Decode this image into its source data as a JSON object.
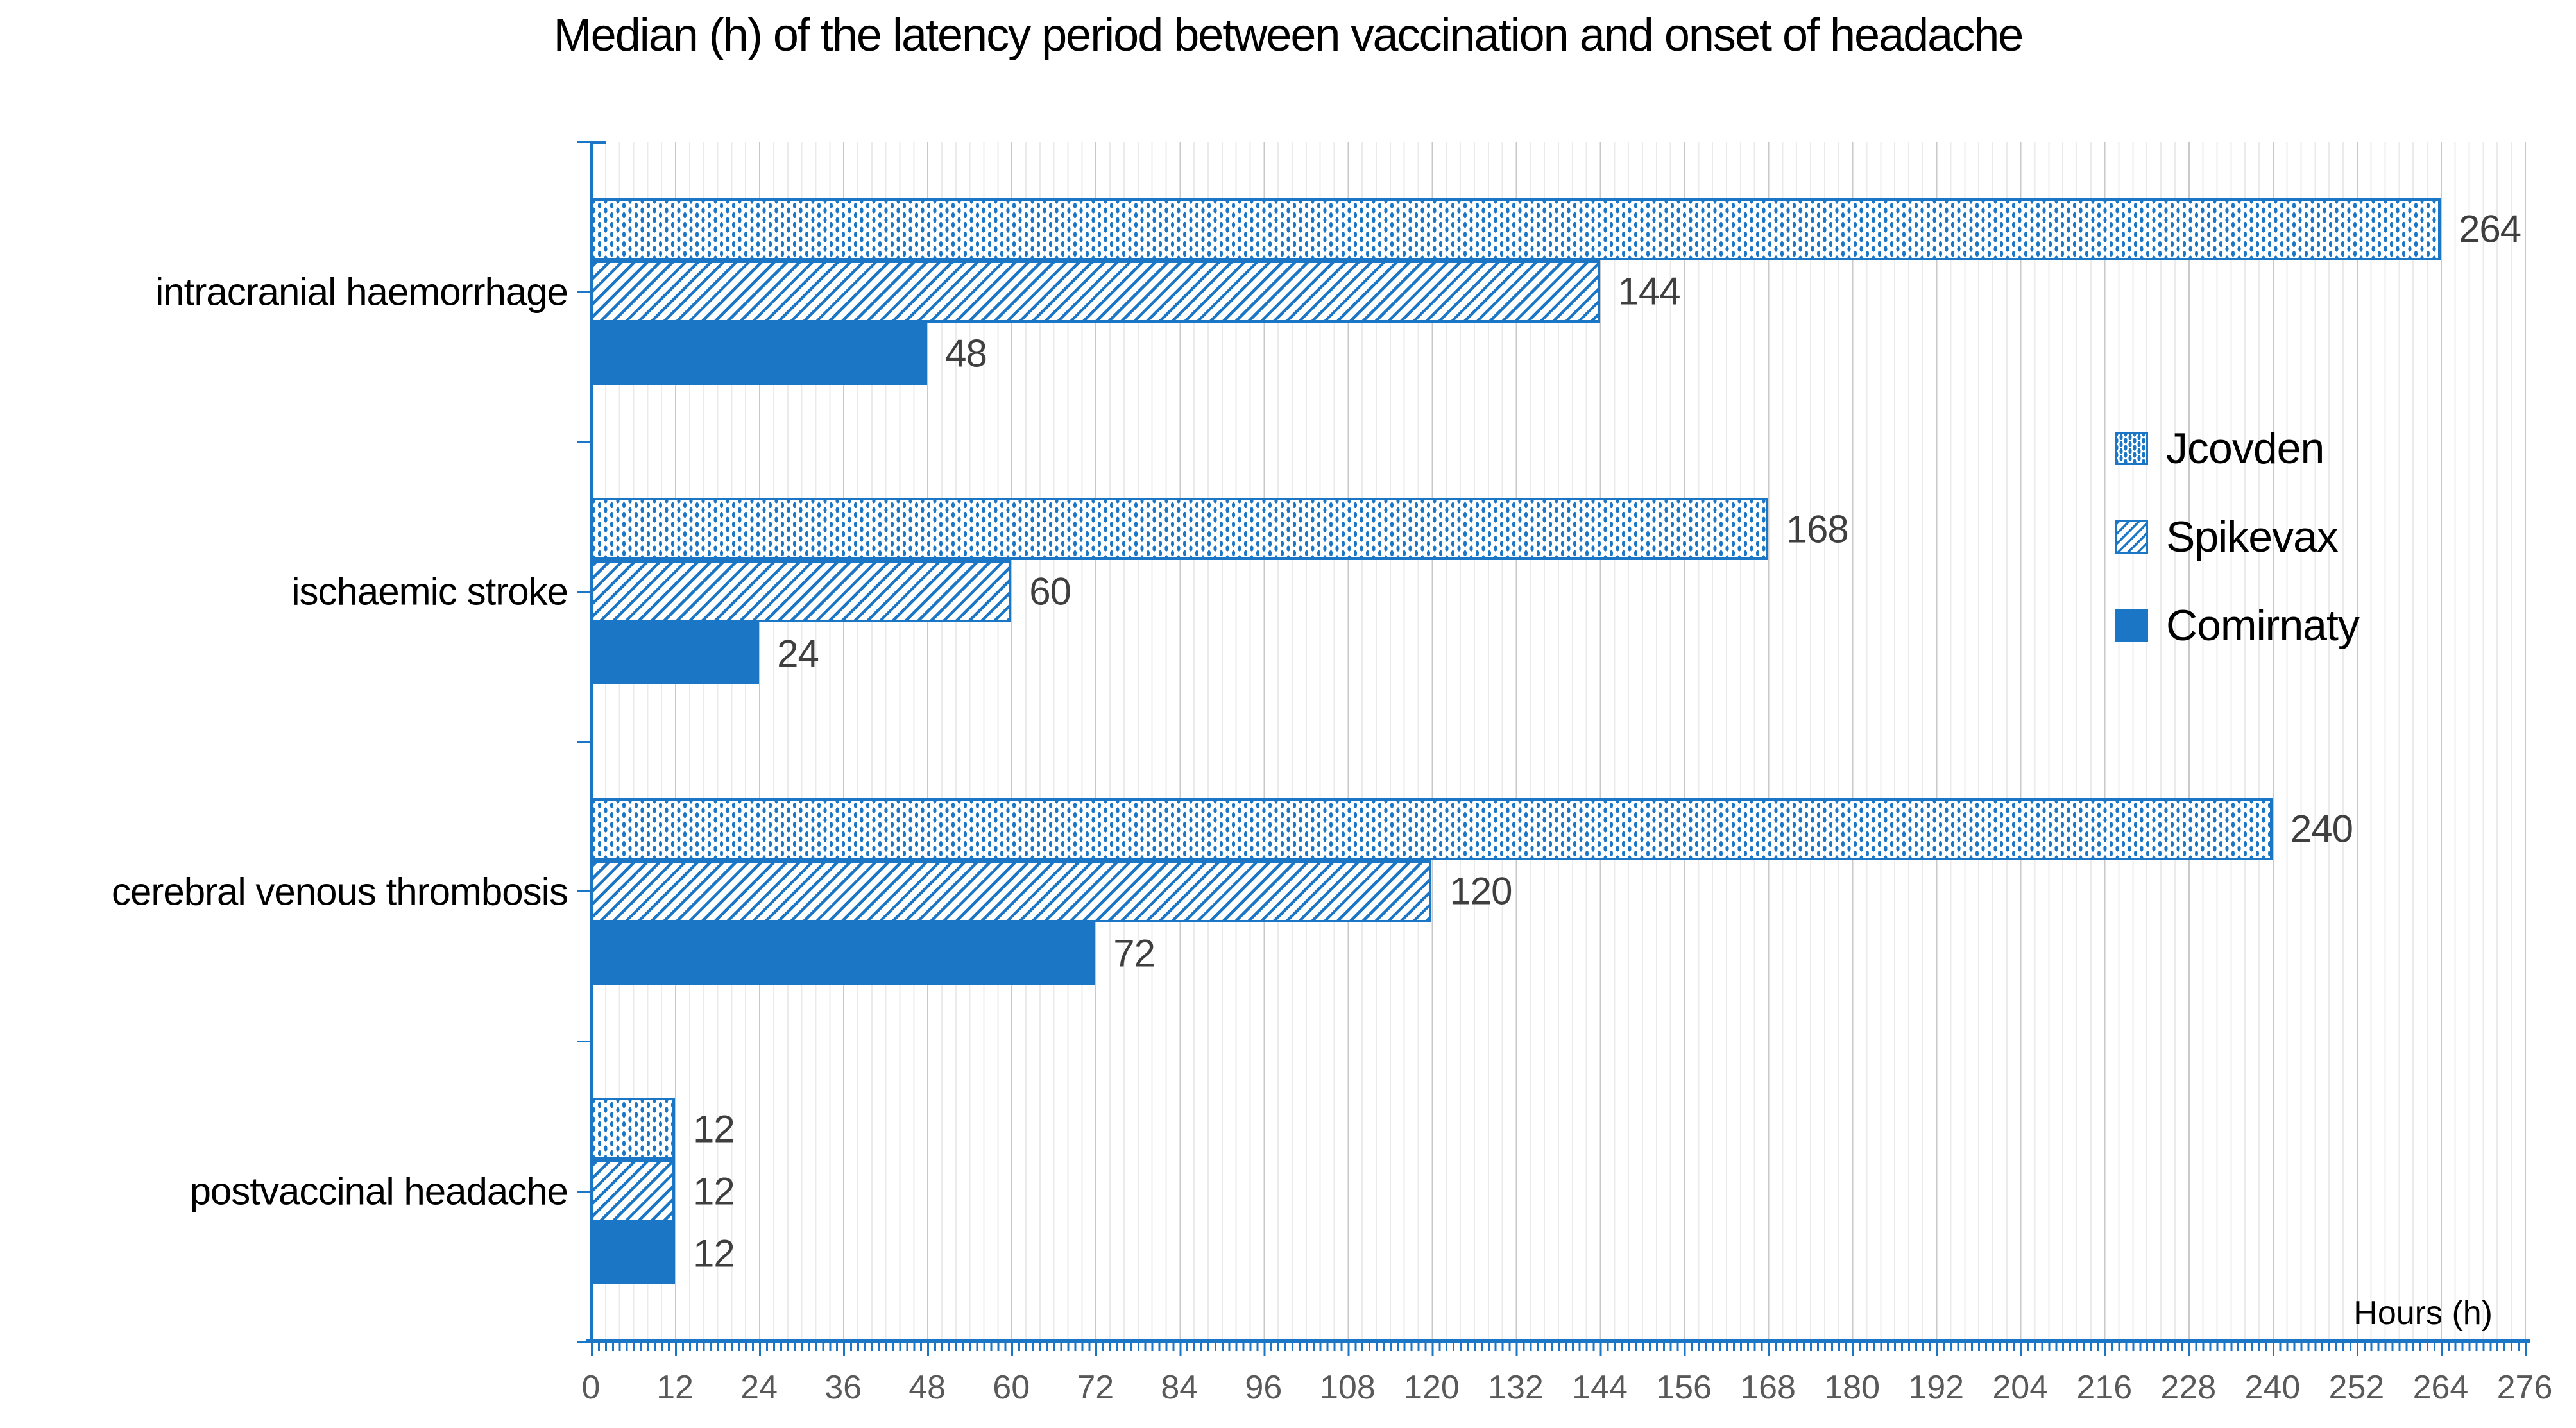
{
  "title": "Median (h) of the latency period between vaccination and onset of headache",
  "axis_title": "Hours (h)",
  "colors": {
    "blue": "#1b76c6",
    "grid_minor": "#ebebeb",
    "grid_major": "#c9c9c9",
    "value_label": "#3f3f3f",
    "tick_label": "#595959",
    "text": "#000000",
    "background": "#ffffff"
  },
  "legend": [
    {
      "name": "Jcovden",
      "pattern": "dots"
    },
    {
      "name": "Spikevax",
      "pattern": "hatch"
    },
    {
      "name": "Comirnaty",
      "pattern": "solid"
    }
  ],
  "x_ticks": [
    0,
    12,
    24,
    36,
    48,
    60,
    72,
    84,
    96,
    108,
    120,
    132,
    144,
    156,
    168,
    180,
    192,
    204,
    216,
    228,
    240,
    252,
    264,
    276
  ],
  "chart_data": {
    "type": "bar",
    "orientation": "horizontal",
    "title": "Median (h) of the latency period between vaccination and onset of headache",
    "xlabel": "Hours (h)",
    "ylabel": "",
    "categories": [
      "intracranial haemorrhage",
      "ischaemic stroke",
      "cerebral venous thrombosis",
      "postvaccinal headache"
    ],
    "series": [
      {
        "name": "Jcovden",
        "pattern": "dots",
        "values": [
          264,
          168,
          240,
          12
        ]
      },
      {
        "name": "Spikevax",
        "pattern": "hatch",
        "values": [
          144,
          60,
          120,
          12
        ]
      },
      {
        "name": "Comirnaty",
        "pattern": "solid",
        "values": [
          48,
          24,
          72,
          12
        ]
      }
    ],
    "data_labels": true,
    "xlim": [
      0,
      276
    ],
    "x_tick_step": 12,
    "x_minor_tick_step": 1,
    "x_minor_grid_step": 2,
    "grid": "vertical",
    "legend_position": "inside-right"
  }
}
